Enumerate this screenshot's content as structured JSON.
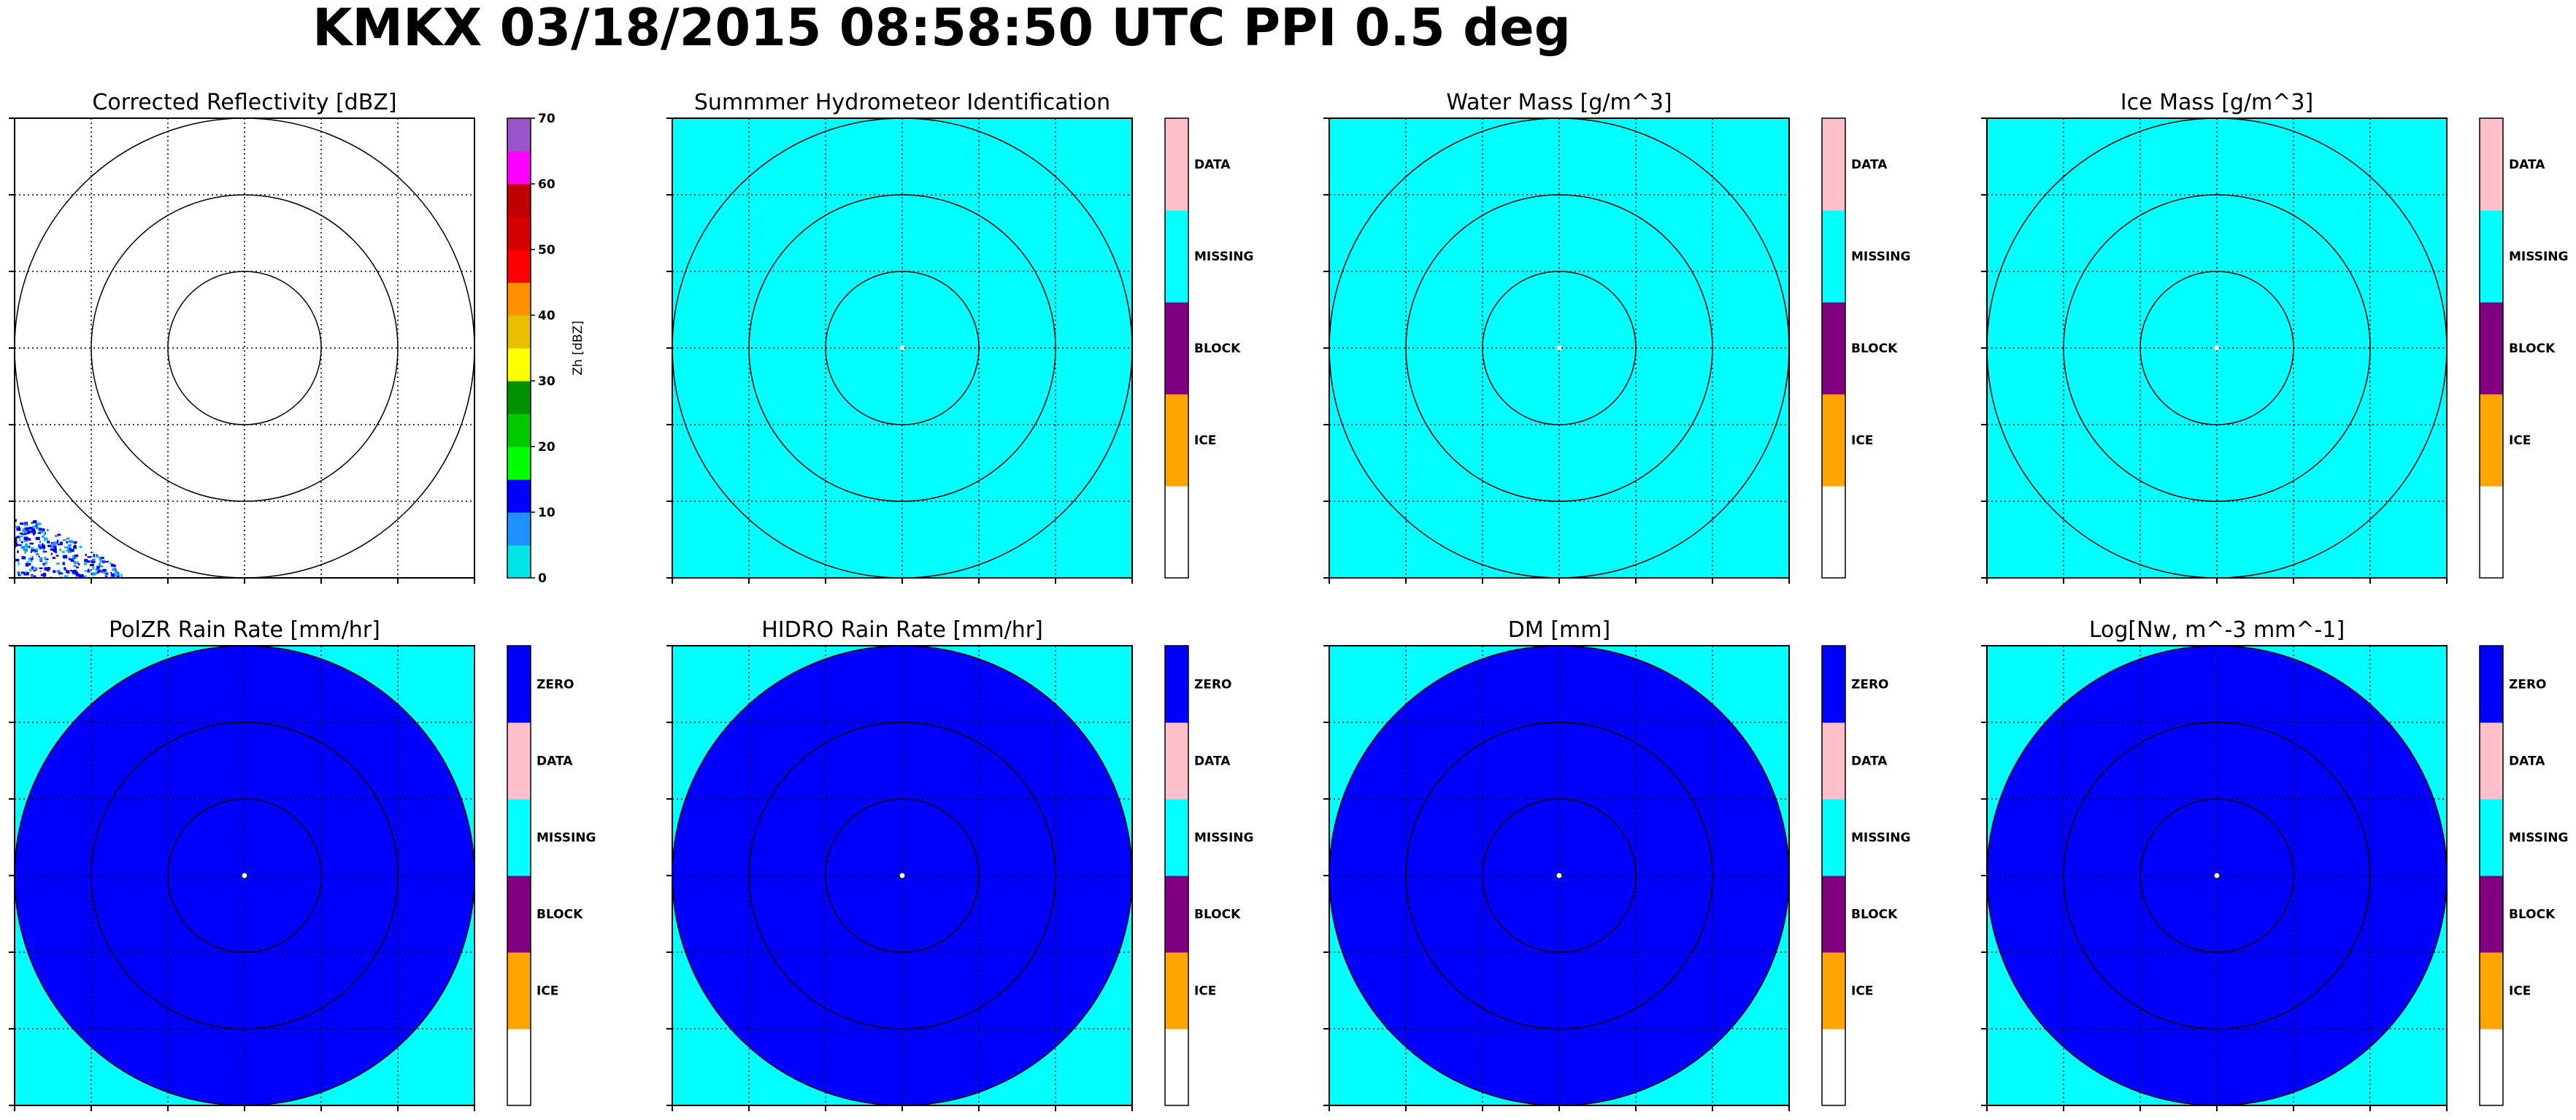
{
  "title": "KMKX 03/18/2015 08:58:50 UTC PPI 0.5 deg",
  "colors": {
    "cyan": "#00ffff",
    "blue": "#0000ff",
    "purple": "#800080",
    "orange": "#ffa500",
    "pink": "#ffc0cb",
    "white": "#ffffff",
    "grid": "#000000"
  },
  "chart_data": [
    {
      "type": "heatmap",
      "title": "Corrected Reflectivity [dBZ]",
      "background": "#ffffff",
      "disk_color": null,
      "echo": true,
      "range_rings": 3,
      "grid": true,
      "colorbar": {
        "kind": "continuous",
        "label": "Zh [dBZ]",
        "min": 0,
        "max": 70,
        "ticks": [
          "0",
          "10",
          "20",
          "30",
          "40",
          "50",
          "60",
          "70"
        ],
        "bins": [
          "#00e6e6",
          "#1e90ff",
          "#0000ff",
          "#00ff00",
          "#00c800",
          "#009000",
          "#ffff00",
          "#e7c000",
          "#ff9000",
          "#ff0000",
          "#d60000",
          "#c00000",
          "#ff00ff",
          "#9955c9"
        ]
      }
    },
    {
      "type": "heatmap",
      "title": "Summmer Hydrometeor Identification",
      "background": "#00ffff",
      "disk_color": null,
      "echo": false,
      "range_rings": 3,
      "grid": true,
      "colorbar": {
        "kind": "categorical",
        "categories": [
          "",
          "ICE",
          "BLOCK",
          "MISSING",
          "DATA"
        ],
        "colors": [
          "#ffffff",
          "#ffa500",
          "#800080",
          "#00ffff",
          "#ffc0cb"
        ]
      }
    },
    {
      "type": "heatmap",
      "title": "Water Mass [g/m^3]",
      "background": "#00ffff",
      "disk_color": null,
      "echo": false,
      "range_rings": 3,
      "grid": true,
      "colorbar": {
        "kind": "categorical",
        "categories": [
          "",
          "ICE",
          "BLOCK",
          "MISSING",
          "DATA"
        ],
        "colors": [
          "#ffffff",
          "#ffa500",
          "#800080",
          "#00ffff",
          "#ffc0cb"
        ]
      }
    },
    {
      "type": "heatmap",
      "title": "Ice Mass [g/m^3]",
      "background": "#00ffff",
      "disk_color": null,
      "echo": false,
      "range_rings": 3,
      "grid": true,
      "colorbar": {
        "kind": "categorical",
        "categories": [
          "",
          "ICE",
          "BLOCK",
          "MISSING",
          "DATA"
        ],
        "colors": [
          "#ffffff",
          "#ffa500",
          "#800080",
          "#00ffff",
          "#ffc0cb"
        ]
      }
    },
    {
      "type": "heatmap",
      "title": "PolZR Rain Rate [mm/hr]",
      "background": "#00ffff",
      "disk_color": "#0000ff",
      "echo": false,
      "range_rings": 3,
      "grid": true,
      "colorbar": {
        "kind": "categorical",
        "categories": [
          "",
          "ICE",
          "BLOCK",
          "MISSING",
          "DATA",
          "ZERO"
        ],
        "colors": [
          "#ffffff",
          "#ffa500",
          "#800080",
          "#00ffff",
          "#ffc0cb",
          "#0000ff"
        ]
      }
    },
    {
      "type": "heatmap",
      "title": "HIDRO Rain Rate [mm/hr]",
      "background": "#00ffff",
      "disk_color": "#0000ff",
      "echo": false,
      "range_rings": 3,
      "grid": true,
      "colorbar": {
        "kind": "categorical",
        "categories": [
          "",
          "ICE",
          "BLOCK",
          "MISSING",
          "DATA",
          "ZERO"
        ],
        "colors": [
          "#ffffff",
          "#ffa500",
          "#800080",
          "#00ffff",
          "#ffc0cb",
          "#0000ff"
        ]
      }
    },
    {
      "type": "heatmap",
      "title": "DM [mm]",
      "background": "#00ffff",
      "disk_color": "#0000ff",
      "echo": false,
      "range_rings": 3,
      "grid": true,
      "colorbar": {
        "kind": "categorical",
        "categories": [
          "",
          "ICE",
          "BLOCK",
          "MISSING",
          "DATA",
          "ZERO"
        ],
        "colors": [
          "#ffffff",
          "#ffa500",
          "#800080",
          "#00ffff",
          "#ffc0cb",
          "#0000ff"
        ]
      }
    },
    {
      "type": "heatmap",
      "title": "Log[Nw, m^-3 mm^-1]",
      "background": "#00ffff",
      "disk_color": "#0000ff",
      "echo": false,
      "range_rings": 3,
      "grid": true,
      "colorbar": {
        "kind": "categorical",
        "categories": [
          "",
          "ICE",
          "BLOCK",
          "MISSING",
          "DATA",
          "ZERO"
        ],
        "colors": [
          "#ffffff",
          "#ffa500",
          "#800080",
          "#00ffff",
          "#ffc0cb",
          "#0000ff"
        ]
      }
    }
  ]
}
